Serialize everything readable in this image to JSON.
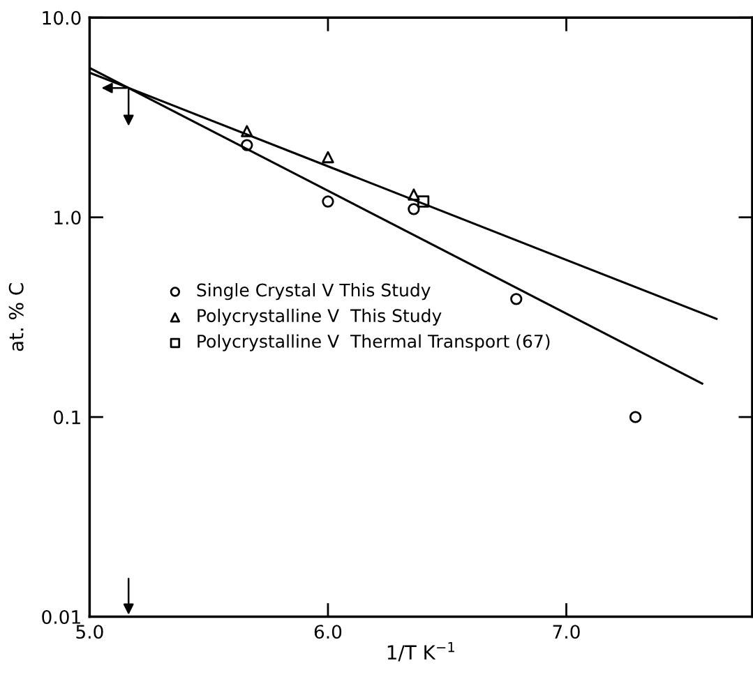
{
  "chart_data": {
    "type": "scatter",
    "xlabel": "1/T K$^{−1}$",
    "ylabel": "at. % C",
    "log": "y",
    "xlim": [
      5.0,
      7.78
    ],
    "ylim": [
      0.01,
      10.0
    ],
    "xticks": [
      {
        "value": 5.0,
        "label": "5.0"
      },
      {
        "value": 6.0,
        "label": "6.0"
      },
      {
        "value": 7.0,
        "label": "7.0"
      }
    ],
    "yticks": [
      {
        "value": 0.01,
        "label": "0.01"
      },
      {
        "value": 0.1,
        "label": "0.1"
      },
      {
        "value": 1.0,
        "label": "1.0"
      },
      {
        "value": 10.0,
        "label": "10.0"
      }
    ],
    "grid": false,
    "legend": "center left",
    "series": [
      {
        "name": "Single Crystal V This Study",
        "marker": "circle",
        "color": "#000000",
        "x": [
          5.66,
          6.0,
          6.36,
          6.79,
          7.29
        ],
        "values": [
          2.3,
          1.2,
          1.1,
          0.39,
          0.1
        ]
      },
      {
        "name": "Polycrystalline V  This Study",
        "marker": "triangle",
        "color": "#000000",
        "x": [
          5.66,
          6.0,
          6.36
        ],
        "values": [
          2.7,
          2.0,
          1.3
        ]
      },
      {
        "name": "Polycrystalline V  Thermal Transport (67)",
        "marker": "square",
        "color": "#000000",
        "x": [
          6.4
        ],
        "values": [
          1.2
        ]
      },
      {
        "type": "line",
        "marker": "none",
        "line_style": "solid",
        "color": "#000000",
        "x": [
          5.0,
          7.57
        ],
        "values": [
          5.6,
          0.147
        ]
      },
      {
        "type": "line",
        "marker": "none",
        "line_style": "solid",
        "color": "#000000",
        "x": [
          5.0,
          7.63
        ],
        "values": [
          5.3,
          0.31
        ]
      }
    ]
  }
}
